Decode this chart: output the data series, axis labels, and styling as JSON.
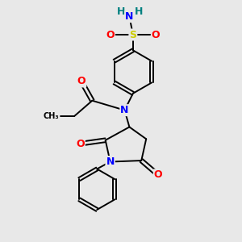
{
  "bg_color": "#e8e8e8",
  "atom_colors": {
    "N": "#0000ff",
    "O": "#ff0000",
    "S": "#cccc00",
    "C": "#000000",
    "H": "#008080"
  },
  "bond_color": "#000000",
  "bond_width": 1.5,
  "font_size_atom": 9,
  "font_size_small": 8,
  "lw": 1.4
}
